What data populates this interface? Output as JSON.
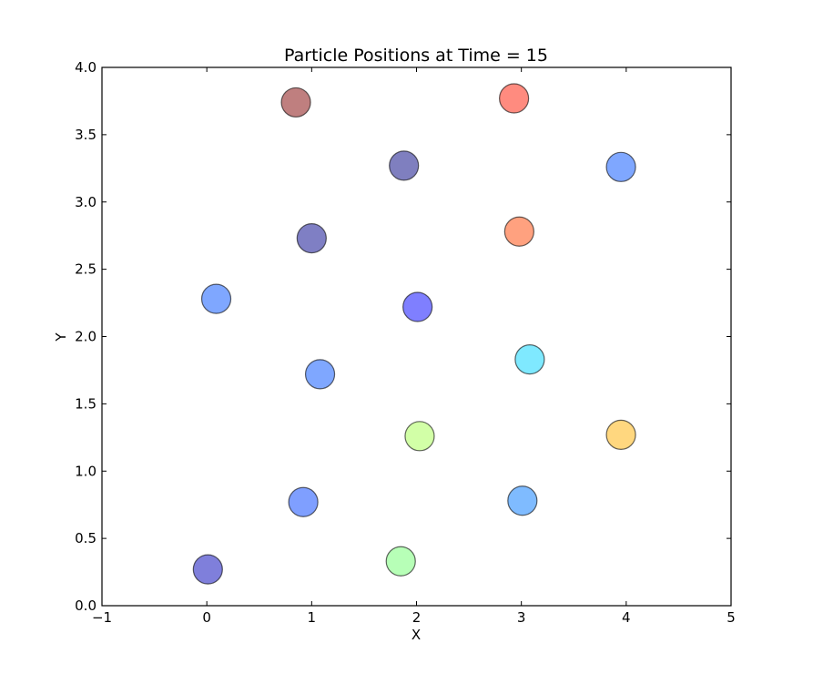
{
  "chart_data": {
    "type": "scatter",
    "title": "Particle Positions at Time = 15",
    "xlabel": "X",
    "ylabel": "Y",
    "xlim": [
      -1,
      5
    ],
    "ylim": [
      0.0,
      4.0
    ],
    "grid": false,
    "x_ticks": [
      "−1",
      "0",
      "1",
      "2",
      "3",
      "4",
      "5"
    ],
    "y_ticks": [
      "0.0",
      "0.5",
      "1.0",
      "1.5",
      "2.0",
      "2.5",
      "3.0",
      "3.5",
      "4.0"
    ],
    "marker_alpha": 0.5,
    "points": [
      {
        "x": 0.85,
        "y": 3.74,
        "color": "#800000"
      },
      {
        "x": 2.93,
        "y": 3.77,
        "color": "#ff1800"
      },
      {
        "x": 1.88,
        "y": 3.27,
        "color": "#000080"
      },
      {
        "x": 3.95,
        "y": 3.26,
        "color": "#0050ff"
      },
      {
        "x": 1.0,
        "y": 2.73,
        "color": "#00008a"
      },
      {
        "x": 2.98,
        "y": 2.78,
        "color": "#ff4400"
      },
      {
        "x": 0.09,
        "y": 2.28,
        "color": "#0050ff"
      },
      {
        "x": 2.01,
        "y": 2.22,
        "color": "#0000ff"
      },
      {
        "x": 1.08,
        "y": 1.72,
        "color": "#0050ff"
      },
      {
        "x": 3.08,
        "y": 1.83,
        "color": "#00d4ff"
      },
      {
        "x": 2.03,
        "y": 1.26,
        "color": "#a6ff50"
      },
      {
        "x": 3.95,
        "y": 1.27,
        "color": "#ffb000"
      },
      {
        "x": 0.92,
        "y": 0.77,
        "color": "#0040ff"
      },
      {
        "x": 3.01,
        "y": 0.78,
        "color": "#0078ff"
      },
      {
        "x": 0.01,
        "y": 0.27,
        "color": "#0000b8"
      },
      {
        "x": 1.85,
        "y": 0.33,
        "color": "#70ff70"
      }
    ]
  }
}
